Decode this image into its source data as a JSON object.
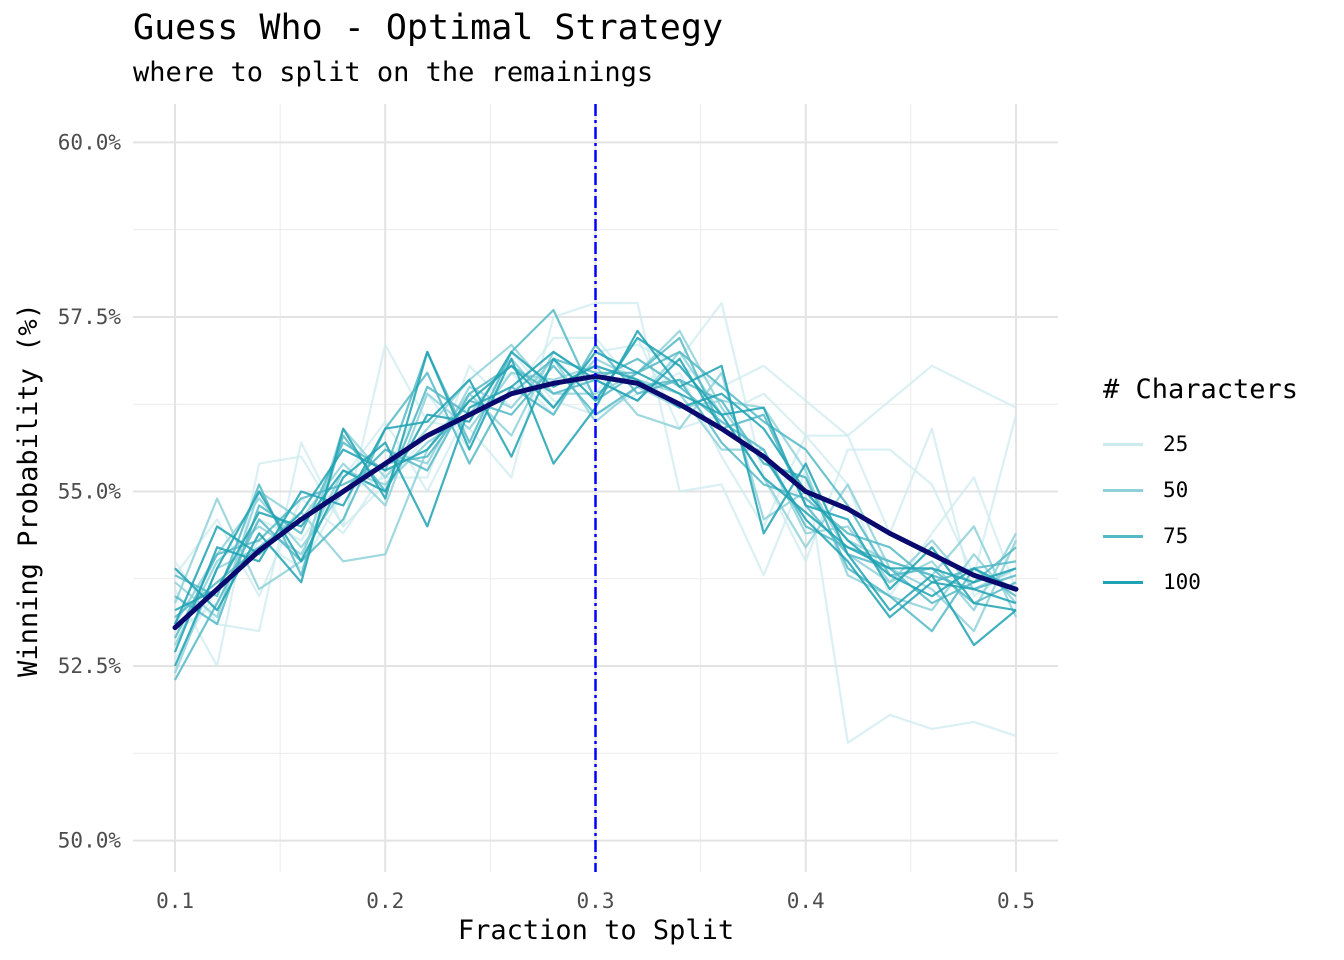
{
  "chart_data": {
    "type": "line",
    "title": "Guess Who - Optimal Strategy",
    "subtitle": "where to split on the remainings",
    "xlabel": "Fraction to Split",
    "ylabel": "Winning Probability (%)",
    "xlim": [
      0.08,
      0.52
    ],
    "ylim": [
      49.55,
      60.55
    ],
    "x_ticks": [
      0.1,
      0.2,
      0.3,
      0.4,
      0.5
    ],
    "x_tick_labels": [
      "0.1",
      "0.2",
      "0.3",
      "0.4",
      "0.5"
    ],
    "y_ticks": [
      50.0,
      52.5,
      55.0,
      57.5,
      60.0
    ],
    "y_tick_labels": [
      "50.0%",
      "52.5%",
      "55.0%",
      "57.5%",
      "60.0%"
    ],
    "grid": true,
    "legend": {
      "title": "# Characters",
      "position": "right",
      "items": [
        {
          "label": "25",
          "color": "#cdebef"
        },
        {
          "label": "50",
          "color": "#8ed1d9"
        },
        {
          "label": "75",
          "color": "#54b8c5"
        },
        {
          "label": "100",
          "color": "#1fa2b3"
        }
      ]
    },
    "vline": {
      "x": 0.3,
      "color": "#0000ff",
      "style": "dashdot"
    },
    "smooth_color": "#0a0a6e",
    "x": [
      0.1,
      0.12,
      0.14,
      0.16,
      0.18,
      0.2,
      0.22,
      0.24,
      0.26,
      0.28,
      0.3,
      0.32,
      0.34,
      0.36,
      0.38,
      0.4,
      0.42,
      0.44,
      0.46,
      0.48,
      0.5
    ],
    "series": [
      {
        "n": 25,
        "color": "#cdebef",
        "values": [
          53.6,
          52.5,
          55.4,
          55.5,
          54.5,
          57.1,
          56.0,
          55.9,
          55.2,
          57.5,
          57.7,
          57.7,
          55.0,
          55.1,
          53.8,
          55.3,
          51.4,
          51.8,
          51.6,
          51.7,
          51.5
        ]
      },
      {
        "n": 25,
        "color": "#cdebef",
        "values": [
          54.0,
          53.1,
          53.0,
          55.7,
          54.5,
          55.1,
          55.8,
          56.2,
          56.4,
          57.2,
          57.2,
          56.5,
          56.9,
          57.7,
          55.2,
          54.0,
          55.6,
          55.6,
          55.1,
          53.8,
          56.1
        ]
      },
      {
        "n": 25,
        "color": "#cdebef",
        "values": [
          52.6,
          53.6,
          54.6,
          54.3,
          55.2,
          56.0,
          55.0,
          56.2,
          56.7,
          56.1,
          57.0,
          57.1,
          56.8,
          56.5,
          56.8,
          56.3,
          55.8,
          56.3,
          56.8,
          56.5,
          56.2
        ]
      },
      {
        "n": 25,
        "color": "#cdebef",
        "values": [
          53.8,
          54.6,
          53.5,
          54.9,
          54.4,
          55.3,
          56.4,
          55.6,
          57.0,
          56.3,
          56.1,
          56.4,
          56.7,
          55.5,
          54.5,
          55.8,
          55.1,
          53.5,
          54.4,
          55.2,
          53.6
        ]
      },
      {
        "n": 25,
        "color": "#cdebef",
        "values": [
          53.0,
          53.4,
          54.3,
          53.9,
          55.0,
          55.2,
          55.2,
          56.8,
          56.2,
          56.9,
          56.4,
          57.2,
          55.9,
          56.1,
          56.4,
          55.8,
          55.8,
          54.4,
          55.9,
          53.5,
          53.9
        ]
      },
      {
        "n": 50,
        "color": "#8ed1d9",
        "values": [
          52.4,
          53.9,
          54.2,
          54.7,
          54.0,
          54.1,
          55.6,
          56.4,
          55.8,
          57.0,
          56.6,
          56.3,
          57.0,
          56.1,
          55.2,
          54.2,
          55.1,
          53.9,
          53.6,
          53.0,
          54.3
        ]
      },
      {
        "n": 50,
        "color": "#8ed1d9",
        "values": [
          53.4,
          54.9,
          53.6,
          54.0,
          55.9,
          55.2,
          55.9,
          56.6,
          57.1,
          56.4,
          56.4,
          56.7,
          57.3,
          56.2,
          55.4,
          55.2,
          54.1,
          53.7,
          54.0,
          53.3,
          54.4
        ]
      },
      {
        "n": 50,
        "color": "#8ed1d9",
        "values": [
          53.1,
          54.1,
          54.9,
          54.2,
          55.0,
          55.6,
          55.4,
          56.5,
          56.2,
          56.9,
          56.0,
          56.5,
          56.2,
          56.3,
          56.2,
          55.3,
          53.8,
          53.5,
          53.3,
          54.1,
          53.4
        ]
      },
      {
        "n": 50,
        "color": "#8ed1d9",
        "values": [
          53.7,
          53.2,
          55.0,
          54.6,
          55.4,
          54.8,
          56.4,
          55.9,
          56.7,
          56.6,
          56.8,
          56.1,
          55.9,
          56.7,
          54.6,
          55.0,
          54.3,
          54.0,
          53.8,
          54.5,
          53.2
        ]
      },
      {
        "n": 50,
        "color": "#8ed1d9",
        "values": [
          52.8,
          54.0,
          54.5,
          54.1,
          55.3,
          55.1,
          55.7,
          56.1,
          56.9,
          56.2,
          56.9,
          56.6,
          56.4,
          55.6,
          55.6,
          54.4,
          54.5,
          53.7,
          54.3,
          53.6,
          53.9
        ]
      },
      {
        "n": 75,
        "color": "#54b8c5",
        "values": [
          53.5,
          53.1,
          54.8,
          54.4,
          55.7,
          55.3,
          57.0,
          55.7,
          57.0,
          57.6,
          56.3,
          56.7,
          57.2,
          55.9,
          56.1,
          54.8,
          54.1,
          53.9,
          53.4,
          53.7,
          54.2
        ]
      },
      {
        "n": 75,
        "color": "#54b8c5",
        "values": [
          52.3,
          53.4,
          54.6,
          54.0,
          54.6,
          55.9,
          56.7,
          55.4,
          56.5,
          56.1,
          57.1,
          56.4,
          56.6,
          56.3,
          55.4,
          55.2,
          53.9,
          53.5,
          53.0,
          53.9,
          53.5
        ]
      },
      {
        "n": 75,
        "color": "#54b8c5",
        "values": [
          53.2,
          53.7,
          54.2,
          54.6,
          55.0,
          55.6,
          55.3,
          56.4,
          56.8,
          56.4,
          56.6,
          56.9,
          56.5,
          56.0,
          55.6,
          54.5,
          54.2,
          54.0,
          53.8,
          53.6,
          53.8
        ]
      },
      {
        "n": 75,
        "color": "#54b8c5",
        "values": [
          53.8,
          53.5,
          55.1,
          53.8,
          55.8,
          55.0,
          56.5,
          56.1,
          56.4,
          56.9,
          56.7,
          56.7,
          57.0,
          56.5,
          56.0,
          55.6,
          54.8,
          53.8,
          53.9,
          53.4,
          53.7
        ]
      },
      {
        "n": 75,
        "color": "#54b8c5",
        "values": [
          52.9,
          54.1,
          54.3,
          54.9,
          55.1,
          55.4,
          55.5,
          56.3,
          56.1,
          56.8,
          56.1,
          56.5,
          56.6,
          55.7,
          55.1,
          54.9,
          54.4,
          54.2,
          53.7,
          53.9,
          54.0
        ]
      },
      {
        "n": 100,
        "color": "#1fa2b3",
        "values": [
          53.9,
          53.3,
          54.4,
          53.7,
          55.9,
          54.9,
          57.0,
          55.6,
          56.9,
          55.4,
          56.2,
          57.3,
          56.5,
          56.8,
          54.4,
          55.4,
          54.1,
          53.3,
          53.8,
          52.8,
          53.3
        ]
      },
      {
        "n": 100,
        "color": "#1fa2b3",
        "values": [
          52.5,
          53.9,
          55.0,
          54.0,
          55.2,
          55.7,
          54.5,
          56.2,
          56.5,
          57.0,
          56.6,
          56.3,
          56.9,
          55.9,
          55.5,
          54.6,
          54.0,
          53.2,
          53.7,
          53.6,
          53.4
        ]
      },
      {
        "n": 100,
        "color": "#1fa2b3",
        "values": [
          53.3,
          53.6,
          54.7,
          54.5,
          55.3,
          55.0,
          56.1,
          56.0,
          57.0,
          56.5,
          56.8,
          56.6,
          56.2,
          56.4,
          55.9,
          55.0,
          54.3,
          53.8,
          53.5,
          53.9,
          53.6
        ]
      },
      {
        "n": 100,
        "color": "#1fa2b3",
        "values": [
          52.7,
          54.2,
          54.0,
          55.0,
          54.8,
          55.9,
          56.0,
          56.6,
          55.5,
          56.9,
          56.3,
          57.2,
          56.8,
          56.1,
          56.2,
          54.8,
          54.6,
          53.6,
          54.2,
          53.4,
          53.3
        ]
      },
      {
        "n": 100,
        "color": "#1fa2b3",
        "values": [
          53.1,
          54.5,
          54.1,
          54.7,
          55.6,
          55.3,
          55.6,
          56.3,
          56.8,
          56.2,
          57.0,
          56.7,
          56.4,
          56.1,
          55.2,
          54.7,
          54.2,
          53.9,
          53.9,
          53.7,
          53.9
        ]
      }
    ],
    "smooth": {
      "name": "",
      "x": [
        0.1,
        0.12,
        0.14,
        0.16,
        0.18,
        0.2,
        0.22,
        0.24,
        0.26,
        0.28,
        0.3,
        0.32,
        0.34,
        0.36,
        0.38,
        0.4,
        0.42,
        0.44,
        0.46,
        0.48,
        0.5
      ],
      "values": [
        53.05,
        53.6,
        54.15,
        54.6,
        55.0,
        55.4,
        55.8,
        56.1,
        56.4,
        56.55,
        56.65,
        56.55,
        56.25,
        55.9,
        55.5,
        55.0,
        54.75,
        54.4,
        54.1,
        53.8,
        53.6
      ]
    }
  }
}
